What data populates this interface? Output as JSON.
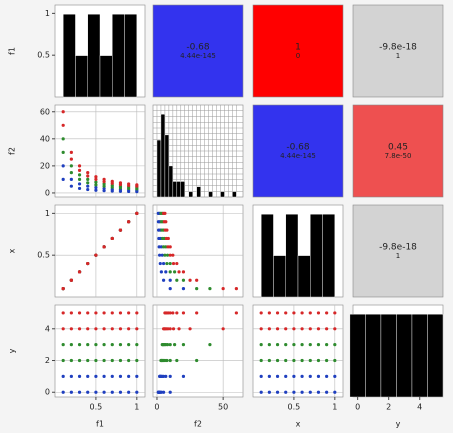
{
  "chart_data": {
    "type": "pair_plot",
    "grid": true,
    "variables": [
      {
        "name": "f1",
        "lim": [
          0,
          1.1
        ],
        "xticks": [
          0.5,
          1
        ],
        "yticks": [
          0.5,
          1
        ]
      },
      {
        "name": "f2",
        "lim": [
          -3,
          65
        ],
        "xticks": [
          0,
          50
        ],
        "yticks": [
          0,
          20,
          40,
          60
        ]
      },
      {
        "name": "x",
        "lim": [
          0,
          1.1
        ],
        "xticks": [
          0.5,
          1
        ],
        "yticks": [
          0.5,
          1
        ]
      },
      {
        "name": "y",
        "lim": [
          -0.3,
          5.5
        ],
        "xticks": [
          0,
          2,
          4
        ],
        "yticks": [
          0,
          2,
          4
        ]
      }
    ],
    "points": {
      "f1": [
        0.1,
        0.1,
        0.1,
        0.1,
        0.1,
        0.1,
        0.2,
        0.2,
        0.2,
        0.2,
        0.2,
        0.2,
        0.3,
        0.3,
        0.3,
        0.3,
        0.3,
        0.3,
        0.4,
        0.4,
        0.4,
        0.4,
        0.4,
        0.4,
        0.5,
        0.5,
        0.5,
        0.5,
        0.5,
        0.5,
        0.6,
        0.6,
        0.6,
        0.6,
        0.6,
        0.6,
        0.7,
        0.7,
        0.7,
        0.7,
        0.7,
        0.7,
        0.8,
        0.8,
        0.8,
        0.8,
        0.8,
        0.8,
        0.9,
        0.9,
        0.9,
        0.9,
        0.9,
        0.9,
        1,
        1,
        1,
        1,
        1,
        1
      ],
      "f2": [
        10,
        20,
        30,
        40,
        50,
        60,
        5,
        10,
        15,
        20,
        25,
        30,
        3.33,
        6.67,
        10,
        13.33,
        16.67,
        20,
        2.5,
        5,
        7.5,
        10,
        12.5,
        15,
        2,
        4,
        6,
        8,
        10,
        12,
        1.67,
        3.33,
        5,
        6.67,
        8.33,
        10,
        1.43,
        2.86,
        4.29,
        5.71,
        7.14,
        8.57,
        1.25,
        2.5,
        3.75,
        5,
        6.25,
        7.5,
        1.11,
        2.22,
        3.33,
        4.44,
        5.56,
        6.67,
        1,
        2,
        3,
        4,
        5,
        6
      ],
      "x": [
        0.1,
        0.1,
        0.1,
        0.1,
        0.1,
        0.1,
        0.2,
        0.2,
        0.2,
        0.2,
        0.2,
        0.2,
        0.3,
        0.3,
        0.3,
        0.3,
        0.3,
        0.3,
        0.4,
        0.4,
        0.4,
        0.4,
        0.4,
        0.4,
        0.5,
        0.5,
        0.5,
        0.5,
        0.5,
        0.5,
        0.6,
        0.6,
        0.6,
        0.6,
        0.6,
        0.6,
        0.7,
        0.7,
        0.7,
        0.7,
        0.7,
        0.7,
        0.8,
        0.8,
        0.8,
        0.8,
        0.8,
        0.8,
        0.9,
        0.9,
        0.9,
        0.9,
        0.9,
        0.9,
        1,
        1,
        1,
        1,
        1,
        1
      ],
      "y": [
        0,
        1,
        2,
        3,
        4,
        5,
        0,
        1,
        2,
        3,
        4,
        5,
        0,
        1,
        2,
        3,
        4,
        5,
        0,
        1,
        2,
        3,
        4,
        5,
        0,
        1,
        2,
        3,
        4,
        5,
        0,
        1,
        2,
        3,
        4,
        5,
        0,
        1,
        2,
        3,
        4,
        5,
        0,
        1,
        2,
        3,
        4,
        5,
        0,
        1,
        2,
        3,
        4,
        5,
        0,
        1,
        2,
        3,
        4,
        5
      ]
    },
    "point_colors": [
      "#1f3fbf",
      "#1f3fbf",
      "#2e8b2e",
      "#2e8b2e",
      "#d62728",
      "#d62728",
      "#1f3fbf",
      "#1f3fbf",
      "#2e8b2e",
      "#2e8b2e",
      "#d62728",
      "#d62728",
      "#1f3fbf",
      "#1f3fbf",
      "#2e8b2e",
      "#2e8b2e",
      "#d62728",
      "#d62728",
      "#1f3fbf",
      "#1f3fbf",
      "#2e8b2e",
      "#2e8b2e",
      "#d62728",
      "#d62728",
      "#1f3fbf",
      "#1f3fbf",
      "#2e8b2e",
      "#2e8b2e",
      "#d62728",
      "#d62728",
      "#1f3fbf",
      "#1f3fbf",
      "#2e8b2e",
      "#2e8b2e",
      "#d62728",
      "#d62728",
      "#1f3fbf",
      "#1f3fbf",
      "#2e8b2e",
      "#2e8b2e",
      "#d62728",
      "#d62728",
      "#1f3fbf",
      "#1f3fbf",
      "#2e8b2e",
      "#2e8b2e",
      "#d62728",
      "#d62728",
      "#1f3fbf",
      "#1f3fbf",
      "#2e8b2e",
      "#2e8b2e",
      "#d62728",
      "#d62728",
      "#1f3fbf",
      "#1f3fbf",
      "#2e8b2e",
      "#2e8b2e",
      "#d62728",
      "#d62728"
    ],
    "hist_color": "#000000",
    "histograms": [
      {
        "bins": [
          0.1,
          0.25,
          0.4,
          0.55,
          0.7,
          0.85,
          1
        ],
        "counts": [
          12,
          6,
          12,
          6,
          12,
          12
        ]
      },
      {
        "bins": [
          0,
          3,
          6,
          9,
          12,
          15,
          18,
          21,
          24,
          27,
          30,
          33,
          36,
          39,
          42,
          45,
          48,
          51,
          54,
          57,
          60
        ],
        "counts": [
          11,
          16,
          12,
          6,
          3,
          3,
          3,
          0,
          1,
          0,
          2,
          0,
          0,
          1,
          0,
          0,
          1,
          0,
          0,
          1
        ]
      },
      {
        "bins": [
          0.1,
          0.25,
          0.4,
          0.55,
          0.7,
          0.85,
          1
        ],
        "counts": [
          12,
          6,
          12,
          6,
          12,
          12
        ]
      },
      {
        "bins": [
          -0.5,
          0.5,
          1.5,
          2.5,
          3.5,
          4.5,
          5.5
        ],
        "counts": [
          10,
          10,
          10,
          10,
          10,
          10
        ]
      }
    ],
    "correlations": [
      {
        "r": -0.68,
        "p": 4.44e-145,
        "color": "#3333ee"
      },
      {
        "r": 1,
        "p": 0,
        "color": "#ff0000"
      },
      {
        "r": -9.8e-18,
        "p": 1,
        "color": "#d3d3d3"
      },
      {
        "r": -0.68,
        "p": 4.44e-145,
        "color": "#3333ee"
      },
      {
        "r": 0.45,
        "p": 7.8e-50,
        "color": "#ee5050"
      },
      {
        "r": -9.8e-18,
        "p": 1,
        "color": "#d3d3d3"
      }
    ]
  }
}
